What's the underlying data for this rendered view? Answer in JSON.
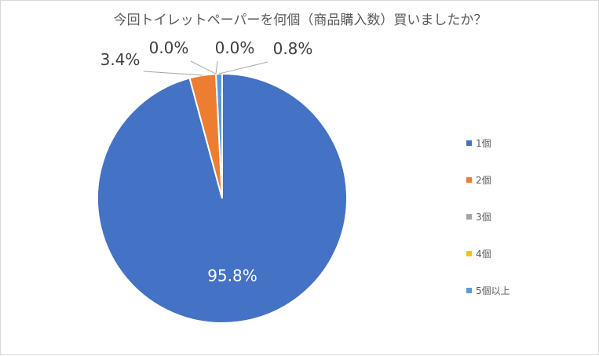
{
  "chart_data": {
    "type": "pie",
    "title": "今回トイレットペーパーを何個（商品購入数）買いましたか？",
    "categories": [
      "1個",
      "2個",
      "3個",
      "4個",
      "5個以上"
    ],
    "values": [
      95.8,
      3.4,
      0.0,
      0.0,
      0.8
    ],
    "labels": [
      "95.8%",
      "3.4%",
      "0.0%",
      "0.0%",
      "0.8%"
    ],
    "colors": [
      "#4472c4",
      "#ed7d31",
      "#a5a5a5",
      "#ffc000",
      "#5b9bd5"
    ],
    "legend_position": "right"
  }
}
